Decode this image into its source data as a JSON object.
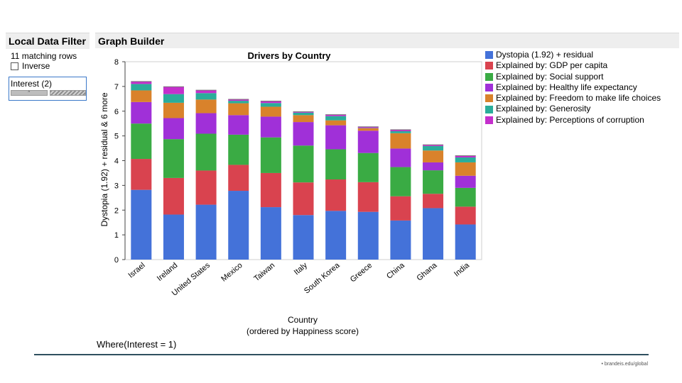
{
  "local_data_filter": {
    "title": "Local Data Filter",
    "matching_rows": "11 matching rows",
    "inverse_label": "Inverse",
    "filter_label": "Interest (2)",
    "bar_marker": "^"
  },
  "graph_builder": {
    "title": "Graph Builder",
    "where_clause": "Where(Interest = 1)"
  },
  "footer": {
    "credit": "• brandeis.edu/global"
  },
  "chart_data": {
    "type": "bar",
    "stacked": true,
    "title": "Drivers by Country",
    "xlabel": "Country",
    "xlabel_sub": "(ordered by Happiness score)",
    "ylabel": "Dystopia (1.92) + residual & 6 more",
    "ylim": [
      0,
      8
    ],
    "yticks": [
      0,
      1,
      2,
      3,
      4,
      5,
      6,
      7,
      8
    ],
    "categories": [
      "Israel",
      "Ireland",
      "United States",
      "Mexico",
      "Taiwan",
      "Italy",
      "South Korea",
      "Greece",
      "China",
      "Ghana",
      "India"
    ],
    "series": [
      {
        "name": "Dystopia (1.92) + residual",
        "color": "#4472d9",
        "values": [
          2.82,
          1.82,
          2.22,
          2.78,
          2.12,
          1.8,
          1.97,
          1.93,
          1.58,
          2.08,
          1.42
        ]
      },
      {
        "name": "Explained by: GDP per capita",
        "color": "#d9434f",
        "values": [
          1.25,
          1.48,
          1.38,
          1.05,
          1.38,
          1.32,
          1.27,
          1.2,
          0.98,
          0.58,
          0.72
        ]
      },
      {
        "name": "Explained by: Social support",
        "color": "#3aab44",
        "values": [
          1.43,
          1.57,
          1.49,
          1.22,
          1.44,
          1.49,
          1.22,
          1.18,
          1.18,
          0.95,
          0.76
        ]
      },
      {
        "name": "Explained by: Healthy life expectancy",
        "color": "#a030d8",
        "values": [
          0.87,
          0.85,
          0.83,
          0.79,
          0.84,
          0.95,
          0.97,
          0.9,
          0.75,
          0.32,
          0.49
        ]
      },
      {
        "name": "Explained by: Freedom to make life choices",
        "color": "#d9822b",
        "values": [
          0.47,
          0.62,
          0.55,
          0.48,
          0.4,
          0.28,
          0.2,
          0.1,
          0.62,
          0.48,
          0.54
        ]
      },
      {
        "name": "Explained by: Generosity",
        "color": "#2aad9a",
        "values": [
          0.26,
          0.35,
          0.26,
          0.1,
          0.15,
          0.1,
          0.17,
          0.01,
          0.08,
          0.18,
          0.2
        ]
      },
      {
        "name": "Explained by: Perceptions of corruption",
        "color": "#c42fcc",
        "values": [
          0.1,
          0.3,
          0.12,
          0.06,
          0.08,
          0.04,
          0.06,
          0.05,
          0.06,
          0.05,
          0.07
        ]
      }
    ]
  }
}
